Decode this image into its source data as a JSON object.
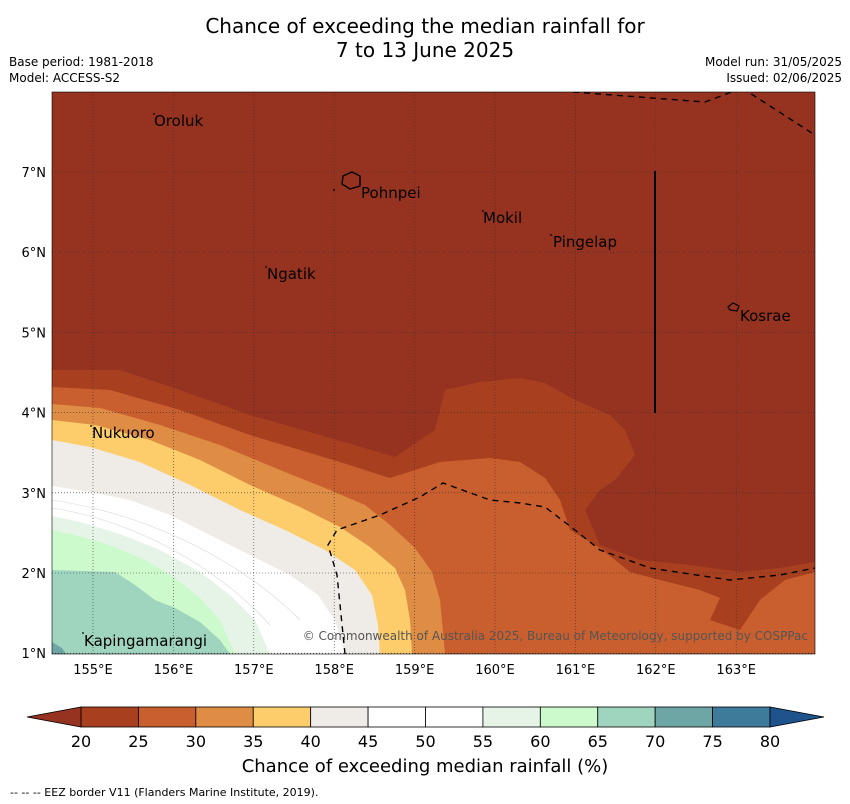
{
  "header": {
    "title_line1": "Chance of exceeding the median rainfall for",
    "title_line2": "7 to 13 June 2025",
    "base_period": "Base period: 1981-2018",
    "model": "Model: ACCESS-S2",
    "model_run": "Model run: 31/05/2025",
    "issued": "Issued: 02/06/2025"
  },
  "map": {
    "lon_labels": [
      "155°E",
      "156°E",
      "157°E",
      "158°E",
      "159°E",
      "160°E",
      "161°E",
      "162°E",
      "163°E"
    ],
    "lat_labels": [
      "7°N",
      "6°N",
      "5°N",
      "4°N",
      "3°N",
      "2°N",
      "1°N"
    ],
    "places": {
      "oroluk": "Oroluk",
      "pohnpei": "Pohnpei",
      "mokil": "Mokil",
      "pingelap": "Pingelap",
      "ngatik": "Ngatik",
      "kosrae": "Kosrae",
      "nukuoro": "Nukuoro",
      "kapingamarangi": "Kapingamarangi"
    },
    "copyright": "© Commonwealth of Australia 2025, Bureau of Meteorology, supported by COSPPac"
  },
  "colorbar": {
    "ticks": [
      "20",
      "25",
      "30",
      "35",
      "40",
      "45",
      "50",
      "55",
      "60",
      "65",
      "70",
      "75",
      "80"
    ],
    "colors": [
      "#a8401f",
      "#c95f2e",
      "#df8c44",
      "#fdcd6b",
      "#efebe6",
      "#ffffff",
      "#ffffff",
      "#e6f4e8",
      "#ccfacc",
      "#9fd4be",
      "#6ea6a6",
      "#3e7a99"
    ],
    "under_color": "#963320",
    "over_color": "#1f538c",
    "label": "Chance of exceeding median rainfall (%)"
  },
  "footer": {
    "eez_legend": "-- -- -- EEZ border V11 (Flanders Marine Institute, 2019)."
  }
}
